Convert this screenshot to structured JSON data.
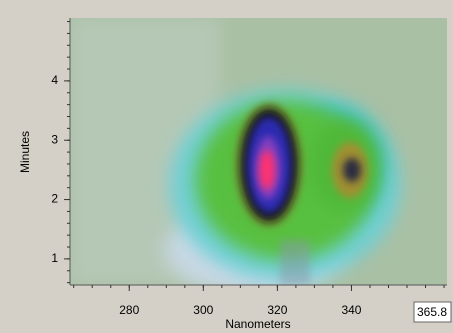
{
  "chart_data": {
    "type": "contour",
    "xlabel": "Nanometers",
    "ylabel": "Minutes",
    "xlim": [
      264,
      365.8
    ],
    "xticks": [
      280,
      300,
      320,
      340
    ],
    "ylim": [
      0.56,
      5.06
    ],
    "yticks": [
      1,
      2,
      3,
      4
    ],
    "cursor_readout": "365.8"
  }
}
